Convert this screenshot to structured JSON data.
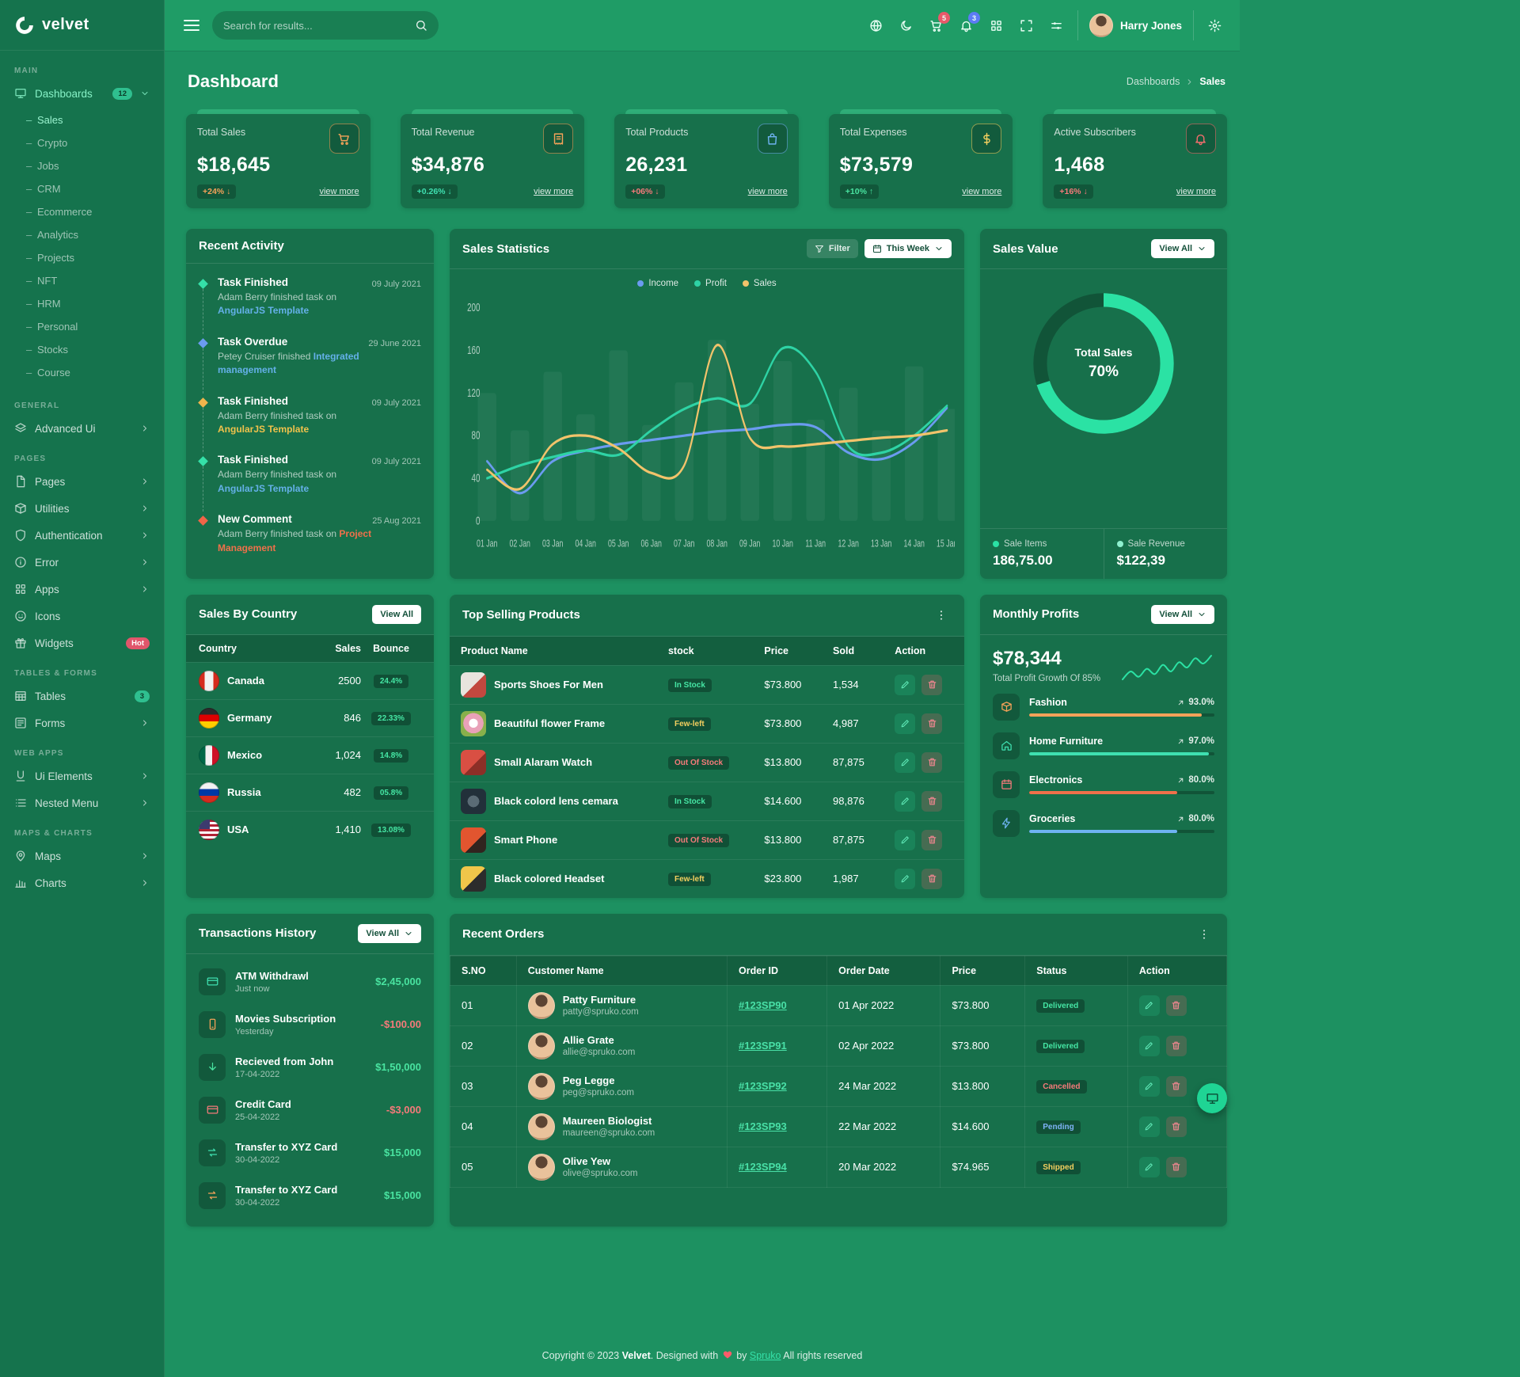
{
  "colors": {
    "header_green": "#1f9c66",
    "body_green": "#1d9161",
    "sidebar_green": "#15734d",
    "card_green": "#17704b",
    "accent_teal": "#2be2a4",
    "accent_orange": "#f5a259",
    "accent_red": "#f0616d",
    "accent_blue": "#6b9bf0",
    "accent_yellow": "#f3cf5f"
  },
  "brand": {
    "name": "velvet"
  },
  "header": {
    "search_placeholder": "Search for results...",
    "cart_badge": "5",
    "bell_badge": "3",
    "user_name": "Harry Jones"
  },
  "page": {
    "title": "Dashboard",
    "breadcrumb": [
      "Dashboards",
      "Sales"
    ]
  },
  "sidebar": {
    "sections": [
      {
        "label": "MAIN",
        "items": [
          {
            "label": "Dashboards",
            "badge": "12",
            "children": [
              "Sales",
              "Crypto",
              "Jobs",
              "CRM",
              "Ecommerce",
              "Analytics",
              "Projects",
              "NFT",
              "HRM",
              "Personal",
              "Stocks",
              "Course"
            ]
          }
        ]
      },
      {
        "label": "GENERAL",
        "items": [
          {
            "label": "Advanced Ui"
          }
        ]
      },
      {
        "label": "PAGES",
        "items": [
          {
            "label": "Pages"
          },
          {
            "label": "Utilities"
          },
          {
            "label": "Authentication"
          },
          {
            "label": "Error"
          },
          {
            "label": "Apps"
          },
          {
            "label": "Icons"
          },
          {
            "label": "Widgets",
            "badge": "Hot"
          }
        ]
      },
      {
        "label": "TABLES & FORMS",
        "items": [
          {
            "label": "Tables",
            "badge": "3"
          },
          {
            "label": "Forms"
          }
        ]
      },
      {
        "label": "WEB APPS",
        "items": [
          {
            "label": "Ui Elements"
          },
          {
            "label": "Nested Menu"
          }
        ]
      },
      {
        "label": "MAPS & CHARTS",
        "items": [
          {
            "label": "Maps"
          },
          {
            "label": "Charts"
          }
        ]
      }
    ]
  },
  "stats": [
    {
      "label": "Total Sales",
      "value": "$18,645",
      "change": "+24% ↓",
      "variant": "orange",
      "link": "view more"
    },
    {
      "label": "Total Revenue",
      "value": "$34,876",
      "change": "+0.26% ↓",
      "variant": "teal",
      "link": "view more"
    },
    {
      "label": "Total Products",
      "value": "26,231",
      "change": "+06% ↓",
      "variant": "red",
      "link": "view more"
    },
    {
      "label": "Total Expenses",
      "value": "$73,579",
      "change": "+10% ↑",
      "variant": "green",
      "link": "view more"
    },
    {
      "label": "Active Subscribers",
      "value": "1,468",
      "change": "+16% ↓",
      "variant": "red",
      "link": "view more"
    }
  ],
  "recent_activity": {
    "title": "Recent Activity",
    "items": [
      {
        "title": "Task Finished",
        "text": "Adam Berry finished task on",
        "link": "AngularJS Template",
        "date": "09 July 2021",
        "variant": "teal",
        "link_variant": "blue"
      },
      {
        "title": "Task Overdue",
        "text": "Petey Cruiser finished",
        "link": "Integrated management",
        "date": "29 June 2021",
        "variant": "blue",
        "link_variant": "blue"
      },
      {
        "title": "Task Finished",
        "text": "Adam Berry finished task on",
        "link": "AngularJS Template",
        "date": "09 July 2021",
        "variant": "orange",
        "link_variant": "yellow"
      },
      {
        "title": "Task Finished",
        "text": "Adam Berry finished task on",
        "link": "AngularJS Template",
        "date": "09 July 2021",
        "variant": "teal",
        "link_variant": "blue"
      },
      {
        "title": "New Comment",
        "text": "Adam Berry finished task on",
        "link": "Project Management",
        "date": "25 Aug 2021",
        "variant": "red",
        "link_variant": "orange"
      }
    ]
  },
  "sales_statistics": {
    "title": "Sales Statistics",
    "filter_label": "Filter",
    "range_label": "This Week",
    "chart_data": {
      "type": "line",
      "x": [
        "01 Jan",
        "02 Jan",
        "03 Jan",
        "04 Jan",
        "05 Jan",
        "06 Jan",
        "07 Jan",
        "08 Jan",
        "09 Jan",
        "10 Jan",
        "11 Jan",
        "12 Jan",
        "13 Jan",
        "14 Jan",
        "15 Jan"
      ],
      "ylim": [
        0,
        200
      ],
      "yticks": [
        0,
        40,
        80,
        120,
        160,
        200
      ],
      "series": [
        {
          "name": "Income",
          "color": "#6b9bf0",
          "values": [
            56,
            26,
            56,
            66,
            72,
            76,
            80,
            84,
            86,
            90,
            88,
            64,
            58,
            74,
            106
          ]
        },
        {
          "name": "Profit",
          "color": "#2ed3a5",
          "values": [
            40,
            52,
            60,
            66,
            62,
            85,
            105,
            115,
            110,
            162,
            140,
            70,
            64,
            80,
            108
          ]
        },
        {
          "name": "Sales",
          "color": "#f2c36b",
          "values": [
            48,
            30,
            72,
            80,
            68,
            45,
            52,
            165,
            78,
            70,
            72,
            75,
            78,
            80,
            85
          ]
        }
      ],
      "background_bars": [
        120,
        85,
        140,
        100,
        160,
        90,
        130,
        170,
        110,
        150,
        95,
        125,
        85,
        145,
        105
      ],
      "legend_position": "top",
      "grid": false
    }
  },
  "sales_value": {
    "title": "Sales Value",
    "view_all": "View All",
    "center_label": "Total Sales",
    "percent": 70,
    "percent_label": "70%",
    "items_label": "Sale Items",
    "items_value": "186,75.00",
    "revenue_label": "Sale Revenue",
    "revenue_value": "$122,39"
  },
  "sales_by_country": {
    "title": "Sales By Country",
    "view_all": "View All",
    "columns": [
      "Country",
      "Sales",
      "Bounce"
    ],
    "rows": [
      {
        "country": "Canada",
        "flag": "canada",
        "sales": "2500",
        "bounce": "24.4%"
      },
      {
        "country": "Germany",
        "flag": "germany",
        "sales": "846",
        "bounce": "22.33%"
      },
      {
        "country": "Mexico",
        "flag": "mexico",
        "sales": "1,024",
        "bounce": "14.8%"
      },
      {
        "country": "Russia",
        "flag": "russia",
        "sales": "482",
        "bounce": "05.8%"
      },
      {
        "country": "USA",
        "flag": "usa",
        "sales": "1,410",
        "bounce": "13.08%"
      }
    ]
  },
  "top_selling_products": {
    "title": "Top Selling Products",
    "columns": [
      "Product Name",
      "stock",
      "Price",
      "Sold",
      "Action"
    ],
    "rows": [
      {
        "name": "Sports Shoes For Men",
        "thumb": "shoes",
        "stock": "In Stock",
        "stock_variant": "success",
        "price": "$73.800",
        "sold": "1,534"
      },
      {
        "name": "Beautiful flower Frame",
        "thumb": "flower",
        "stock": "Few-left",
        "stock_variant": "warning",
        "price": "$73.800",
        "sold": "4,987"
      },
      {
        "name": "Small Alaram Watch",
        "thumb": "watch",
        "stock": "Out Of Stock",
        "stock_variant": "danger",
        "price": "$13.800",
        "sold": "87,875"
      },
      {
        "name": "Black colord lens cemara",
        "thumb": "lens",
        "stock": "In Stock",
        "stock_variant": "success",
        "price": "$14.600",
        "sold": "98,876"
      },
      {
        "name": "Smart Phone",
        "thumb": "phone",
        "stock": "Out Of Stock",
        "stock_variant": "danger",
        "price": "$13.800",
        "sold": "87,875"
      },
      {
        "name": "Black colored Headset",
        "thumb": "headset",
        "stock": "Few-left",
        "stock_variant": "warning",
        "price": "$23.800",
        "sold": "1,987"
      }
    ]
  },
  "monthly_profits": {
    "title": "Monthly Profits",
    "view_all": "View All",
    "total": "$78,344",
    "subtitle": "Total Profit Growth Of 85%",
    "sparkline": [
      18,
      30,
      22,
      34,
      26,
      40,
      30,
      44,
      36,
      50,
      42,
      54
    ],
    "items": [
      {
        "label": "Fashion",
        "percent": 93,
        "percent_label": "93.0%",
        "variant": "orange"
      },
      {
        "label": "Home Furniture",
        "percent": 97,
        "percent_label": "97.0%",
        "variant": "teal"
      },
      {
        "label": "Electronics",
        "percent": 80,
        "percent_label": "80.0%",
        "variant": "red"
      },
      {
        "label": "Groceries",
        "percent": 80,
        "percent_label": "80.0%",
        "variant": "blue"
      }
    ]
  },
  "transactions": {
    "title": "Transactions History",
    "view_all": "View All",
    "rows": [
      {
        "label": "ATM Withdrawl",
        "time": "Just now",
        "amount": "$2,45,000",
        "amount_variant": "pos",
        "icon_variant": "teal"
      },
      {
        "label": "Movies Subscription",
        "time": "Yesterday",
        "amount": "-$100.00",
        "amount_variant": "neg",
        "icon_variant": "orange"
      },
      {
        "label": "Recieved from John",
        "time": "17-04-2022",
        "amount": "$1,50,000",
        "amount_variant": "pos",
        "icon_variant": "green"
      },
      {
        "label": "Credit Card",
        "time": "25-04-2022",
        "amount": "-$3,000",
        "amount_variant": "neg",
        "icon_variant": "red"
      },
      {
        "label": "Transfer to XYZ Card",
        "time": "30-04-2022",
        "amount": "$15,000",
        "amount_variant": "pos",
        "icon_variant": "teal"
      },
      {
        "label": "Transfer to XYZ Card",
        "time": "30-04-2022",
        "amount": "$15,000",
        "amount_variant": "pos",
        "icon_variant": "orange"
      }
    ]
  },
  "recent_orders": {
    "title": "Recent Orders",
    "columns": [
      "S.NO",
      "Customer Name",
      "Order ID",
      "Order Date",
      "Price",
      "Status",
      "Action"
    ],
    "rows": [
      {
        "sno": "01",
        "name": "Patty Furniture",
        "email": "patty@spruko.com",
        "order_id": "#123SP90",
        "date": "01 Apr 2022",
        "price": "$73.800",
        "status": "Delivered",
        "status_variant": "success"
      },
      {
        "sno": "02",
        "name": "Allie Grate",
        "email": "allie@spruko.com",
        "order_id": "#123SP91",
        "date": "02 Apr 2022",
        "price": "$73.800",
        "status": "Delivered",
        "status_variant": "success"
      },
      {
        "sno": "03",
        "name": "Peg Legge",
        "email": "peg@spruko.com",
        "order_id": "#123SP92",
        "date": "24 Mar 2022",
        "price": "$13.800",
        "status": "Cancelled",
        "status_variant": "danger"
      },
      {
        "sno": "04",
        "name": "Maureen Biologist",
        "email": "maureen@spruko.com",
        "order_id": "#123SP93",
        "date": "22 Mar 2022",
        "price": "$14.600",
        "status": "Pending",
        "status_variant": "info"
      },
      {
        "sno": "05",
        "name": "Olive Yew",
        "email": "olive@spruko.com",
        "order_id": "#123SP94",
        "date": "20 Mar 2022",
        "price": "$74.965",
        "status": "Shipped",
        "status_variant": "warning"
      }
    ]
  },
  "footer": {
    "prefix": "Copyright © 2023",
    "brand": "Velvet",
    "middle": ". Designed with",
    "by": "by",
    "link": "Spruko",
    "suffix": "All rights reserved"
  }
}
